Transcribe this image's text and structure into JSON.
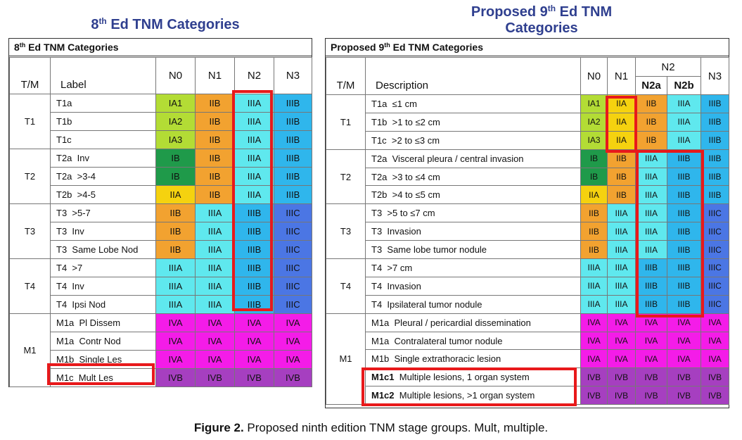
{
  "left_title": {
    "pre": "8",
    "sup": "th",
    "post": " Ed TNM Categories"
  },
  "right_title": {
    "line1_pre": "Proposed 9",
    "line1_sup": "th",
    "line1_post": " Ed TNM",
    "line2": "Categories"
  },
  "left_table": {
    "caption": {
      "pre": "8",
      "sup": "th",
      "post": " Ed TNM Categories"
    },
    "header_tm": "T/M",
    "header_label": "Label",
    "columns": [
      "N0",
      "N1",
      "N2",
      "N3"
    ],
    "groups": [
      {
        "tm": "T1",
        "rows": [
          {
            "label": "T1a",
            "stages": [
              "IA1",
              "IIB",
              "IIIA",
              "IIIB"
            ]
          },
          {
            "label": "T1b",
            "stages": [
              "IA2",
              "IIB",
              "IIIA",
              "IIIB"
            ]
          },
          {
            "label": "T1c",
            "stages": [
              "IA3",
              "IIB",
              "IIIA",
              "IIIB"
            ]
          }
        ]
      },
      {
        "tm": "T2",
        "rows": [
          {
            "label": "T2a  Inv",
            "stages": [
              "IB",
              "IIB",
              "IIIA",
              "IIIB"
            ]
          },
          {
            "label": "T2a  >3-4",
            "stages": [
              "IB",
              "IIB",
              "IIIA",
              "IIIB"
            ]
          },
          {
            "label": "T2b  >4-5",
            "stages": [
              "IIA",
              "IIB",
              "IIIA",
              "IIIB"
            ]
          }
        ]
      },
      {
        "tm": "T3",
        "rows": [
          {
            "label": "T3  >5-7",
            "stages": [
              "IIB",
              "IIIA",
              "IIIB",
              "IIIC"
            ]
          },
          {
            "label": "T3  Inv",
            "stages": [
              "IIB",
              "IIIA",
              "IIIB",
              "IIIC"
            ]
          },
          {
            "label": "T3  Same Lobe Nod",
            "stages": [
              "IIB",
              "IIIA",
              "IIIB",
              "IIIC"
            ]
          }
        ]
      },
      {
        "tm": "T4",
        "rows": [
          {
            "label": "T4  >7",
            "stages": [
              "IIIA",
              "IIIA",
              "IIIB",
              "IIIC"
            ]
          },
          {
            "label": "T4  Inv",
            "stages": [
              "IIIA",
              "IIIA",
              "IIIB",
              "IIIC"
            ]
          },
          {
            "label": "T4  Ipsi Nod",
            "stages": [
              "IIIA",
              "IIIA",
              "IIIB",
              "IIIC"
            ]
          }
        ]
      },
      {
        "tm": "M1",
        "rows": [
          {
            "label": "M1a  Pl Dissem",
            "stages": [
              "IVA",
              "IVA",
              "IVA",
              "IVA"
            ]
          },
          {
            "label": "M1a  Contr Nod",
            "stages": [
              "IVA",
              "IVA",
              "IVA",
              "IVA"
            ]
          },
          {
            "label": "M1b  Single Les",
            "stages": [
              "IVA",
              "IVA",
              "IVA",
              "IVA"
            ]
          },
          {
            "label": "M1c  Mult Les",
            "stages": [
              "IVB",
              "IVB",
              "IVB",
              "IVB"
            ]
          }
        ]
      }
    ]
  },
  "right_table": {
    "caption": {
      "pre": "Proposed 9",
      "sup": "th",
      "post": " Ed TNM Categories"
    },
    "header_tm": "T/M",
    "header_label": "Description",
    "columns": [
      "N0",
      "N1",
      "N2",
      "N3"
    ],
    "subcolumns": [
      "N2a",
      "N2b"
    ],
    "groups": [
      {
        "tm": "T1",
        "rows": [
          {
            "label": "T1a  ≤1 cm",
            "stages": [
              "IA1",
              "IIA",
              "IIB",
              "IIIA",
              "IIIB"
            ]
          },
          {
            "label": "T1b  >1 to ≤2 cm",
            "stages": [
              "IA2",
              "IIA",
              "IIB",
              "IIIA",
              "IIIB"
            ]
          },
          {
            "label": "T1c  >2 to ≤3 cm",
            "stages": [
              "IA3",
              "IIA",
              "IIB",
              "IIIA",
              "IIIB"
            ]
          }
        ]
      },
      {
        "tm": "T2",
        "rows": [
          {
            "label": "T2a  Visceral pleura / central invasion",
            "stages": [
              "IB",
              "IIB",
              "IIIA",
              "IIIB",
              "IIIB"
            ]
          },
          {
            "label": "T2a  >3 to ≤4 cm",
            "stages": [
              "IB",
              "IIB",
              "IIIA",
              "IIIB",
              "IIIB"
            ]
          },
          {
            "label": "T2b  >4 to ≤5 cm",
            "stages": [
              "IIA",
              "IIB",
              "IIIA",
              "IIIB",
              "IIIB"
            ]
          }
        ]
      },
      {
        "tm": "T3",
        "rows": [
          {
            "label": "T3  >5 to ≤7 cm",
            "stages": [
              "IIB",
              "IIIA",
              "IIIA",
              "IIIB",
              "IIIC"
            ]
          },
          {
            "label": "T3  Invasion",
            "stages": [
              "IIB",
              "IIIA",
              "IIIA",
              "IIIB",
              "IIIC"
            ]
          },
          {
            "label": "T3  Same lobe tumor nodule",
            "stages": [
              "IIB",
              "IIIA",
              "IIIA",
              "IIIB",
              "IIIC"
            ]
          }
        ]
      },
      {
        "tm": "T4",
        "rows": [
          {
            "label": "T4  >7 cm",
            "stages": [
              "IIIA",
              "IIIA",
              "IIIB",
              "IIIB",
              "IIIC"
            ]
          },
          {
            "label": "T4  Invasion",
            "stages": [
              "IIIA",
              "IIIA",
              "IIIB",
              "IIIB",
              "IIIC"
            ]
          },
          {
            "label": "T4  Ipsilateral tumor nodule",
            "stages": [
              "IIIA",
              "IIIA",
              "IIIB",
              "IIIB",
              "IIIC"
            ]
          }
        ]
      },
      {
        "tm": "M1",
        "rows": [
          {
            "label": "M1a  Pleural / pericardial dissemination",
            "stages": [
              "IVA",
              "IVA",
              "IVA",
              "IVA",
              "IVA"
            ]
          },
          {
            "label": "M1a  Contralateral tumor nodule",
            "stages": [
              "IVA",
              "IVA",
              "IVA",
              "IVA",
              "IVA"
            ]
          },
          {
            "label": "M1b  Single extrathoracic lesion",
            "stages": [
              "IVA",
              "IVA",
              "IVA",
              "IVA",
              "IVA"
            ]
          },
          {
            "code": "M1c1",
            "desc": "  Multiple lesions, 1 organ system",
            "stages": [
              "IVB",
              "IVB",
              "IVB",
              "IVB",
              "IVB"
            ]
          },
          {
            "code": "M1c2",
            "desc": "  Multiple lesions, >1 organ system",
            "stages": [
              "IVB",
              "IVB",
              "IVB",
              "IVB",
              "IVB"
            ]
          }
        ]
      }
    ]
  },
  "stage_colors": {
    "IA1": "#b3dc35",
    "IA2": "#b3dc35",
    "IA3": "#b3dc35",
    "IB": "#1f9a4a",
    "IIA": "#f5d20f",
    "IIB": "#f2a230",
    "IIIA": "#5fe8ee",
    "IIIB": "#2fb6ec",
    "IIIC": "#4b76e4",
    "IVA": "#f41ce8",
    "IVB": "#a63fc0"
  },
  "highlight_color": "#e8191b",
  "caption": {
    "figure": "Figure 2.",
    "text": " Proposed ninth edition TNM stage groups. Mult, multiple."
  }
}
